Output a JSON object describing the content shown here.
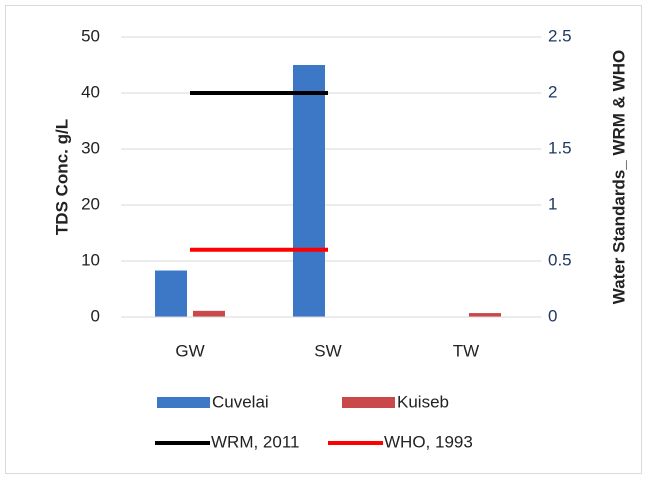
{
  "chart_data": {
    "type": "bar-line",
    "categories": [
      "GW",
      "SW",
      "TW"
    ],
    "y_label": "TDS Conc. g/L",
    "y2_label": "Water Standards_ WRM & WHO",
    "ylim": [
      0,
      50
    ],
    "yticks": [
      0,
      10,
      20,
      30,
      40,
      50
    ],
    "y2lim": [
      0,
      2.5
    ],
    "y2ticks": [
      0,
      0.5,
      1,
      1.5,
      2,
      2.5
    ],
    "grid": true,
    "series": [
      {
        "name": "Cuvelai",
        "type": "bar",
        "color": "#3d78c7",
        "values": [
          8.3,
          45,
          0
        ]
      },
      {
        "name": "Kuiseb",
        "type": "bar",
        "color": "#c9484a",
        "values": [
          1.1,
          0,
          0.7
        ]
      },
      {
        "name": "WRM, 2011",
        "type": "line",
        "axis": "y2",
        "color": "#000000",
        "values": [
          2,
          2,
          null
        ]
      },
      {
        "name": "WHO, 1993",
        "type": "line",
        "axis": "y2",
        "color": "#ff0000",
        "values": [
          0.6,
          0.6,
          null
        ]
      }
    ]
  }
}
